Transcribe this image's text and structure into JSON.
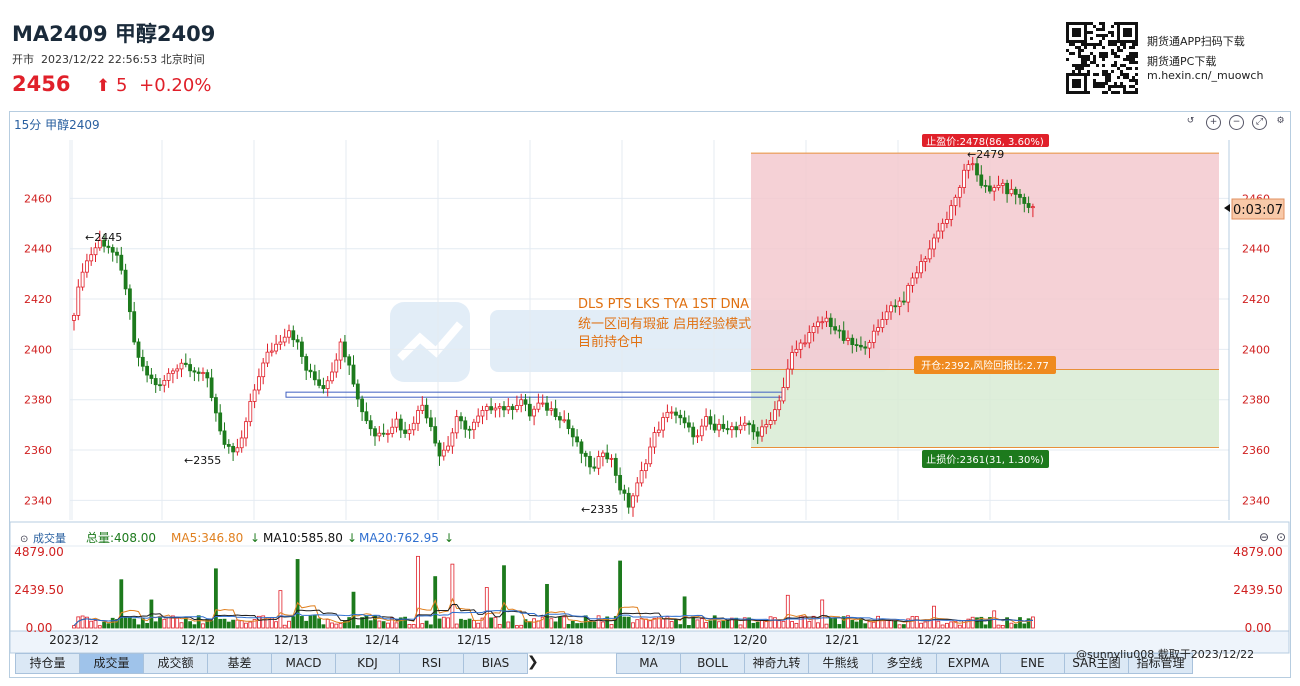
{
  "header": {
    "symbol": "MA2409 甲醇2409",
    "status": "开市",
    "datetime": "2023/12/22 22:56:53 北京时间",
    "price": "2456",
    "arrow": "⬆",
    "change": "5",
    "change_pct": "+0.20%"
  },
  "promo": {
    "line1": "期货通APP扫码下载",
    "line2": "期货通PC下载",
    "line3": "m.hexin.cn/_muowch"
  },
  "panel": {
    "title": "15分 甲醇2409"
  },
  "countdown": "0:03:07",
  "annotations": {
    "strategy_line1": "DLS  PTS LKS TYA 1ST DNA",
    "strategy_line2": "统一区间有瑕疵 启用经验模式",
    "strategy_line3": "目前持仓中",
    "entry_label": "开仓:2392,风险回报比:2.77",
    "stop_label": "止损价:2361(31, 1.30%)",
    "target_label": "止盈价:2478(86, 3.60%)",
    "hi_2445": "←2445",
    "lo_2355": "←2355",
    "lo_2335": "←2335",
    "hi_2479": "←2479"
  },
  "volume": {
    "title": "成交量",
    "total": "总量:408.00",
    "ma5": "MA5:346.80",
    "ma10": "MA10:585.80",
    "ma20": "MA20:762.95",
    "yticks": [
      "4879.00",
      "2439.50",
      "0.00"
    ]
  },
  "colors": {
    "up": "#e0202a",
    "down": "#1d7a1d",
    "ma5": "#e08020",
    "ma10": "#202020",
    "ma20": "#3070d0",
    "target_zone": "#f3c9cf",
    "stop_zone": "#d8ebd4"
  },
  "chart_data": {
    "type": "candlestick",
    "xlabels": [
      "2023/12",
      "12/12",
      "12/13",
      "12/14",
      "12/15",
      "12/18",
      "12/19",
      "12/20",
      "12/21",
      "12/22"
    ],
    "ylim": [
      2333,
      2482
    ],
    "yticks": [
      2340,
      2360,
      2380,
      2400,
      2420,
      2440,
      2460
    ],
    "anchors": [
      [
        0,
        2415
      ],
      [
        2,
        2432
      ],
      [
        4,
        2438
      ],
      [
        6,
        2443
      ],
      [
        8,
        2441
      ],
      [
        10,
        2436
      ],
      [
        12,
        2425
      ],
      [
        14,
        2402
      ],
      [
        16,
        2392
      ],
      [
        18,
        2388
      ],
      [
        20,
        2385
      ],
      [
        22,
        2390
      ],
      [
        25,
        2395
      ],
      [
        28,
        2392
      ],
      [
        31,
        2388
      ],
      [
        33,
        2375
      ],
      [
        35,
        2362
      ],
      [
        37,
        2358
      ],
      [
        39,
        2364
      ],
      [
        41,
        2378
      ],
      [
        43,
        2390
      ],
      [
        45,
        2398
      ],
      [
        47,
        2402
      ],
      [
        50,
        2408
      ],
      [
        52,
        2402
      ],
      [
        54,
        2392
      ],
      [
        56,
        2388
      ],
      [
        58,
        2385
      ],
      [
        60,
        2392
      ],
      [
        62,
        2402
      ],
      [
        64,
        2395
      ],
      [
        66,
        2380
      ],
      [
        68,
        2372
      ],
      [
        70,
        2366
      ],
      [
        73,
        2368
      ],
      [
        75,
        2372
      ],
      [
        77,
        2366
      ],
      [
        79,
        2372
      ],
      [
        81,
        2378
      ],
      [
        83,
        2370
      ],
      [
        85,
        2358
      ],
      [
        87,
        2362
      ],
      [
        89,
        2372
      ],
      [
        92,
        2368
      ],
      [
        95,
        2375
      ],
      [
        98,
        2378
      ],
      [
        101,
        2376
      ],
      [
        104,
        2380
      ],
      [
        106,
        2374
      ],
      [
        108,
        2378
      ],
      [
        111,
        2376
      ],
      [
        114,
        2372
      ],
      [
        117,
        2362
      ],
      [
        119,
        2356
      ],
      [
        121,
        2352
      ],
      [
        123,
        2360
      ],
      [
        125,
        2356
      ],
      [
        127,
        2345
      ],
      [
        129,
        2338
      ],
      [
        131,
        2346
      ],
      [
        133,
        2356
      ],
      [
        135,
        2366
      ],
      [
        137,
        2372
      ],
      [
        139,
        2376
      ],
      [
        141,
        2372
      ],
      [
        143,
        2368
      ],
      [
        145,
        2365
      ],
      [
        147,
        2372
      ],
      [
        149,
        2368
      ],
      [
        151,
        2370
      ],
      [
        154,
        2368
      ],
      [
        157,
        2370
      ],
      [
        159,
        2366
      ],
      [
        161,
        2370
      ],
      [
        163,
        2376
      ],
      [
        165,
        2385
      ],
      [
        167,
        2398
      ],
      [
        169,
        2402
      ],
      [
        171,
        2406
      ],
      [
        173,
        2410
      ],
      [
        175,
        2412
      ],
      [
        177,
        2408
      ],
      [
        179,
        2404
      ],
      [
        181,
        2402
      ],
      [
        183,
        2400
      ],
      [
        185,
        2404
      ],
      [
        187,
        2408
      ],
      [
        189,
        2416
      ],
      [
        191,
        2418
      ],
      [
        193,
        2420
      ],
      [
        195,
        2428
      ],
      [
        197,
        2434
      ],
      [
        199,
        2440
      ],
      [
        201,
        2448
      ],
      [
        203,
        2452
      ],
      [
        205,
        2460
      ],
      [
        207,
        2470
      ],
      [
        209,
        2474
      ],
      [
        211,
        2466
      ],
      [
        213,
        2462
      ],
      [
        215,
        2466
      ],
      [
        217,
        2463
      ],
      [
        219,
        2462
      ],
      [
        221,
        2458
      ],
      [
        223,
        2456
      ]
    ],
    "candle_count": 224,
    "volume_ylim": [
      0,
      4879
    ],
    "volume_peaks": [
      [
        11,
        3100
      ],
      [
        18,
        1800
      ],
      [
        33,
        3800
      ],
      [
        48,
        2400
      ],
      [
        52,
        4400
      ],
      [
        65,
        2300
      ],
      [
        80,
        4600
      ],
      [
        84,
        3300
      ],
      [
        88,
        4100
      ],
      [
        96,
        2600
      ],
      [
        100,
        4000
      ],
      [
        110,
        2800
      ],
      [
        127,
        4300
      ],
      [
        142,
        2000
      ],
      [
        166,
        2100
      ],
      [
        174,
        1800
      ],
      [
        200,
        1400
      ],
      [
        214,
        1100
      ]
    ],
    "levels": {
      "target": 2478,
      "entry": 2392,
      "stop": 2361,
      "range_top": 2383,
      "range_bottom": 2381
    }
  },
  "tabs_left": [
    "持仓量",
    "成交量",
    "成交额",
    "基差",
    "MACD",
    "KDJ",
    "RSI",
    "BIAS"
  ],
  "tabs_right": [
    "MA",
    "BOLL",
    "神奇九转",
    "牛熊线",
    "多空线",
    "EXPMA",
    "ENE",
    "SAR主图",
    "指标管理"
  ],
  "footnote": "@sunnyliu008  截取于2023/12/22"
}
